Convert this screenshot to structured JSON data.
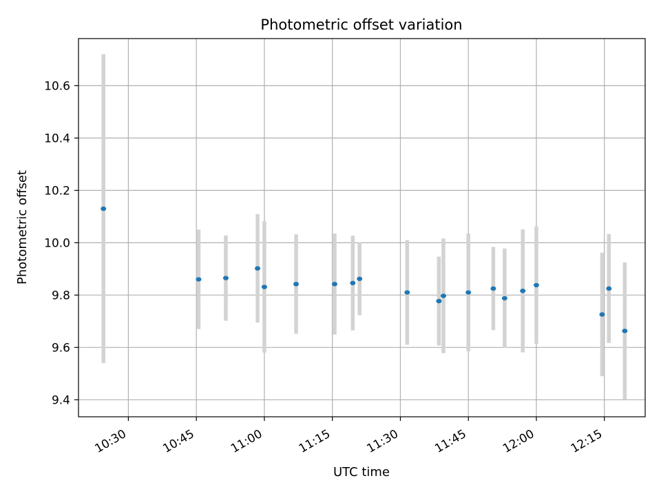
{
  "chart_data": {
    "type": "scatter",
    "title": "Photometric offset variation",
    "xlabel": "UTC time",
    "ylabel": "Photometric offset",
    "xlim": [
      "10:19",
      "12:24"
    ],
    "ylim": [
      9.335,
      10.78
    ],
    "x_ticks": [
      "10:30",
      "10:45",
      "11:00",
      "11:15",
      "11:30",
      "11:45",
      "12:00",
      "12:15"
    ],
    "y_ticks": [
      9.4,
      9.6,
      9.8,
      10.0,
      10.2,
      10.4,
      10.6
    ],
    "grid": true,
    "colors": {
      "points": "#1f77b4",
      "error_bars": "#d3d3d3",
      "grid": "#b0b0b0"
    },
    "series": [
      {
        "points": [
          {
            "x": "10:24:30",
            "y": 10.13,
            "err": 0.59
          },
          {
            "x": "10:45:30",
            "y": 9.86,
            "err": 0.19
          },
          {
            "x": "10:51:30",
            "y": 9.865,
            "err": 0.163
          },
          {
            "x": "10:58:30",
            "y": 9.902,
            "err": 0.207
          },
          {
            "x": "11:00:00",
            "y": 9.831,
            "err": 0.251
          },
          {
            "x": "11:07:00",
            "y": 9.842,
            "err": 0.19
          },
          {
            "x": "11:15:30",
            "y": 9.842,
            "err": 0.193
          },
          {
            "x": "11:19:30",
            "y": 9.846,
            "err": 0.181
          },
          {
            "x": "11:21:00",
            "y": 9.862,
            "err": 0.139
          },
          {
            "x": "11:31:30",
            "y": 9.81,
            "err": 0.2
          },
          {
            "x": "11:38:30",
            "y": 9.777,
            "err": 0.17
          },
          {
            "x": "11:39:30",
            "y": 9.797,
            "err": 0.219
          },
          {
            "x": "11:45:00",
            "y": 9.81,
            "err": 0.225
          },
          {
            "x": "11:50:30",
            "y": 9.825,
            "err": 0.159
          },
          {
            "x": "11:53:00",
            "y": 9.788,
            "err": 0.19
          },
          {
            "x": "11:57:00",
            "y": 9.816,
            "err": 0.235
          },
          {
            "x": "12:00:00",
            "y": 9.838,
            "err": 0.224
          },
          {
            "x": "12:14:30",
            "y": 9.726,
            "err": 0.236
          },
          {
            "x": "12:16:00",
            "y": 9.825,
            "err": 0.208
          },
          {
            "x": "12:19:30",
            "y": 9.663,
            "err": 0.262
          }
        ]
      }
    ]
  }
}
